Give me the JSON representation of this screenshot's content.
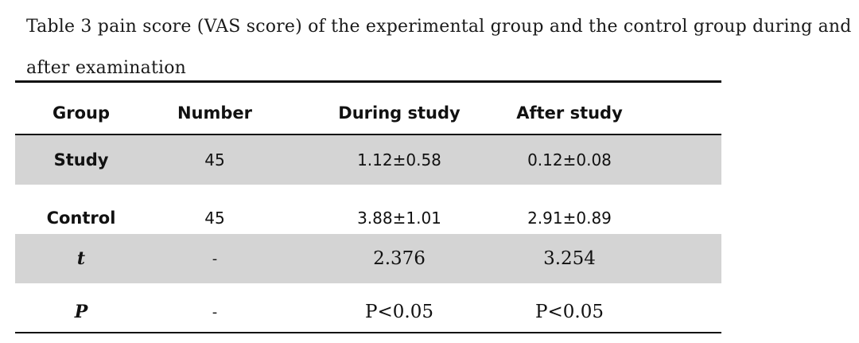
{
  "caption": "Table 3 pain score (VAS score) of the experimental group and the control group during and after examination",
  "table": {
    "headers": [
      "Group",
      "Number",
      "During study",
      "After study"
    ],
    "rows": [
      {
        "group": "Study",
        "number": "45",
        "during": "1.12±0.58",
        "after": "0.12±0.08"
      },
      {
        "group": "Control",
        "number": "45",
        "during": "3.88±1.01",
        "after": "2.91±0.89"
      },
      {
        "group": "t",
        "number": "-",
        "during": "2.376",
        "after": "3.254"
      },
      {
        "group": "P",
        "number": "-",
        "during": "P<0.05",
        "after": "P<0.05"
      }
    ]
  },
  "colors": {
    "shaded_row": "#d4d4d4",
    "rule": "#111111"
  }
}
